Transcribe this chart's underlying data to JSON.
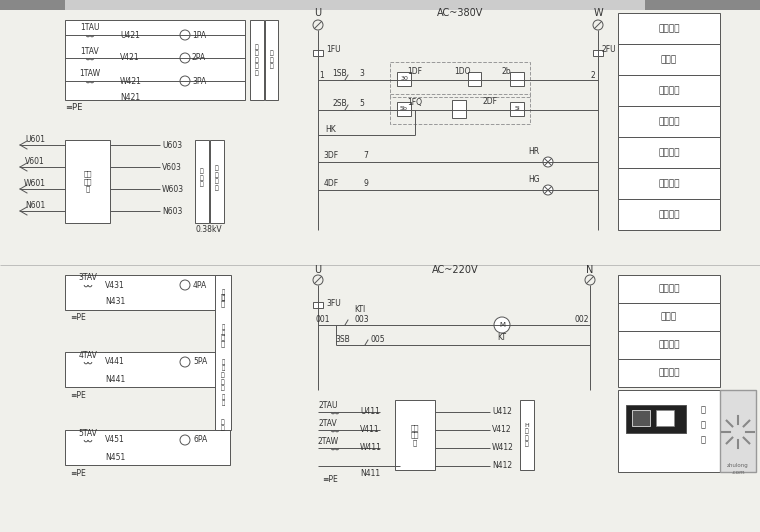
{
  "bg_color": "#f0f0eb",
  "line_color": "#555555",
  "text_color": "#333333",
  "table1_labels": [
    "控制电源",
    "熔断器",
    "合闸回路",
    "分闸回路",
    "跳控分闸",
    "合闸指示",
    "分闸指示"
  ],
  "table2_labels": [
    "控制电源",
    "熔断器",
    "风泵回路",
    "温控回路"
  ],
  "ac380v_label": "AC~380V",
  "ac220v_label": "AC~220V"
}
